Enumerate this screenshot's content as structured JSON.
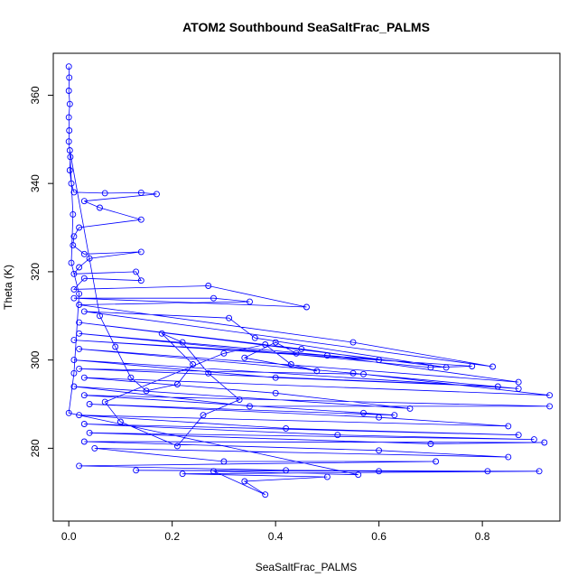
{
  "chart_data": {
    "type": "scatter",
    "title": "ATOM2 Southbound SeaSaltFrac_PALMS",
    "xlabel": "SeaSaltFrac_PALMS",
    "ylabel": "Theta (K)",
    "xlim": [
      -0.03,
      0.95
    ],
    "ylim": [
      263.5,
      369.5
    ],
    "xticks": [
      0.0,
      0.2,
      0.4,
      0.6,
      0.8
    ],
    "xtick_labels": [
      "0.0",
      "0.2",
      "0.4",
      "0.6",
      "0.8"
    ],
    "yticks": [
      280,
      300,
      320,
      340,
      360
    ],
    "ytick_labels": [
      "280",
      "300",
      "320",
      "340",
      "360"
    ],
    "marker": "open-circle",
    "connected": true,
    "color": "#0000ff",
    "grid": false,
    "series": [
      {
        "points": [
          [
            0.0,
            366.5
          ],
          [
            0.001,
            364.0
          ],
          [
            0.0,
            361.0
          ],
          [
            0.002,
            358.0
          ],
          [
            0.0,
            355.0
          ],
          [
            0.001,
            352.0
          ],
          [
            0.0,
            349.5
          ],
          [
            0.003,
            346.0
          ],
          [
            0.002,
            343.0
          ],
          [
            0.005,
            340.0
          ],
          [
            0.01,
            338.0
          ],
          [
            0.07,
            337.8
          ],
          [
            0.14,
            337.9
          ],
          [
            0.17,
            337.6
          ],
          [
            0.03,
            336.0
          ],
          [
            0.06,
            334.5
          ],
          [
            0.14,
            331.8
          ],
          [
            0.02,
            330.0
          ],
          [
            0.01,
            328.0
          ],
          [
            0.008,
            326.0
          ],
          [
            0.03,
            324.0
          ],
          [
            0.14,
            324.5
          ],
          [
            0.04,
            323.0
          ],
          [
            0.02,
            321.0
          ],
          [
            0.01,
            319.5
          ],
          [
            0.13,
            320.0
          ],
          [
            0.14,
            318.0
          ],
          [
            0.03,
            318.5
          ],
          [
            0.01,
            316.0
          ],
          [
            0.27,
            316.8
          ],
          [
            0.46,
            312.0
          ],
          [
            0.01,
            314.0
          ],
          [
            0.28,
            314.0
          ],
          [
            0.35,
            313.2
          ],
          [
            0.02,
            312.5
          ],
          [
            0.55,
            304.0
          ],
          [
            0.82,
            298.5
          ],
          [
            0.03,
            311.0
          ],
          [
            0.31,
            309.5
          ],
          [
            0.36,
            305.0
          ],
          [
            0.73,
            298.3
          ],
          [
            0.02,
            308.5
          ],
          [
            0.45,
            302.5
          ],
          [
            0.6,
            300.0
          ],
          [
            0.02,
            306.0
          ],
          [
            0.7,
            298.3
          ],
          [
            0.78,
            298.6
          ],
          [
            0.01,
            304.5
          ],
          [
            0.5,
            301.0
          ],
          [
            0.87,
            295.0
          ],
          [
            0.02,
            302.5
          ],
          [
            0.55,
            297.0
          ],
          [
            0.87,
            293.5
          ],
          [
            0.01,
            300.0
          ],
          [
            0.4,
            296.0
          ],
          [
            0.83,
            294.0
          ],
          [
            0.02,
            298.0
          ],
          [
            0.57,
            296.8
          ],
          [
            0.93,
            292.0
          ],
          [
            0.03,
            296.0
          ],
          [
            0.4,
            292.5
          ],
          [
            0.66,
            289.0
          ],
          [
            0.01,
            294.0
          ],
          [
            0.35,
            289.5
          ],
          [
            0.93,
            289.5
          ],
          [
            0.03,
            292.0
          ],
          [
            0.57,
            288.0
          ],
          [
            0.63,
            287.5
          ],
          [
            0.04,
            290.0
          ],
          [
            0.6,
            287.0
          ],
          [
            0.85,
            285.0
          ],
          [
            0.02,
            287.5
          ],
          [
            0.42,
            284.5
          ],
          [
            0.87,
            283.0
          ],
          [
            0.03,
            285.5
          ],
          [
            0.52,
            283.0
          ],
          [
            0.9,
            282.0
          ],
          [
            0.04,
            283.5
          ],
          [
            0.7,
            281.0
          ],
          [
            0.92,
            281.3
          ],
          [
            0.03,
            281.5
          ],
          [
            0.6,
            279.5
          ],
          [
            0.85,
            278.0
          ],
          [
            0.05,
            280.0
          ],
          [
            0.3,
            277.0
          ],
          [
            0.71,
            277.0
          ],
          [
            0.02,
            276.0
          ],
          [
            0.42,
            275.0
          ],
          [
            0.81,
            274.8
          ],
          [
            0.13,
            275.0
          ],
          [
            0.6,
            274.8
          ],
          [
            0.91,
            274.8
          ],
          [
            0.22,
            274.2
          ],
          [
            0.5,
            273.5
          ],
          [
            0.34,
            272.5
          ],
          [
            0.38,
            269.5
          ],
          [
            0.28,
            274.8
          ],
          [
            0.56,
            274.0
          ],
          [
            0.0,
            288.0
          ],
          [
            0.01,
            297.0
          ],
          [
            0.02,
            315.0
          ],
          [
            0.005,
            322.0
          ],
          [
            0.008,
            333.0
          ],
          [
            0.002,
            347.5
          ],
          [
            0.06,
            310.0
          ],
          [
            0.09,
            303.0
          ],
          [
            0.12,
            296.0
          ],
          [
            0.15,
            293.0
          ],
          [
            0.21,
            294.5
          ],
          [
            0.24,
            299.0
          ],
          [
            0.18,
            306.0
          ],
          [
            0.22,
            304.0
          ],
          [
            0.27,
            297.0
          ],
          [
            0.33,
            291.0
          ],
          [
            0.26,
            287.5
          ],
          [
            0.21,
            280.5
          ],
          [
            0.1,
            286.0
          ],
          [
            0.07,
            290.5
          ],
          [
            0.3,
            301.5
          ],
          [
            0.38,
            303.5
          ],
          [
            0.43,
            299.0
          ],
          [
            0.48,
            297.5
          ],
          [
            0.34,
            300.5
          ],
          [
            0.4,
            304.0
          ],
          [
            0.44,
            301.5
          ]
        ]
      }
    ]
  }
}
